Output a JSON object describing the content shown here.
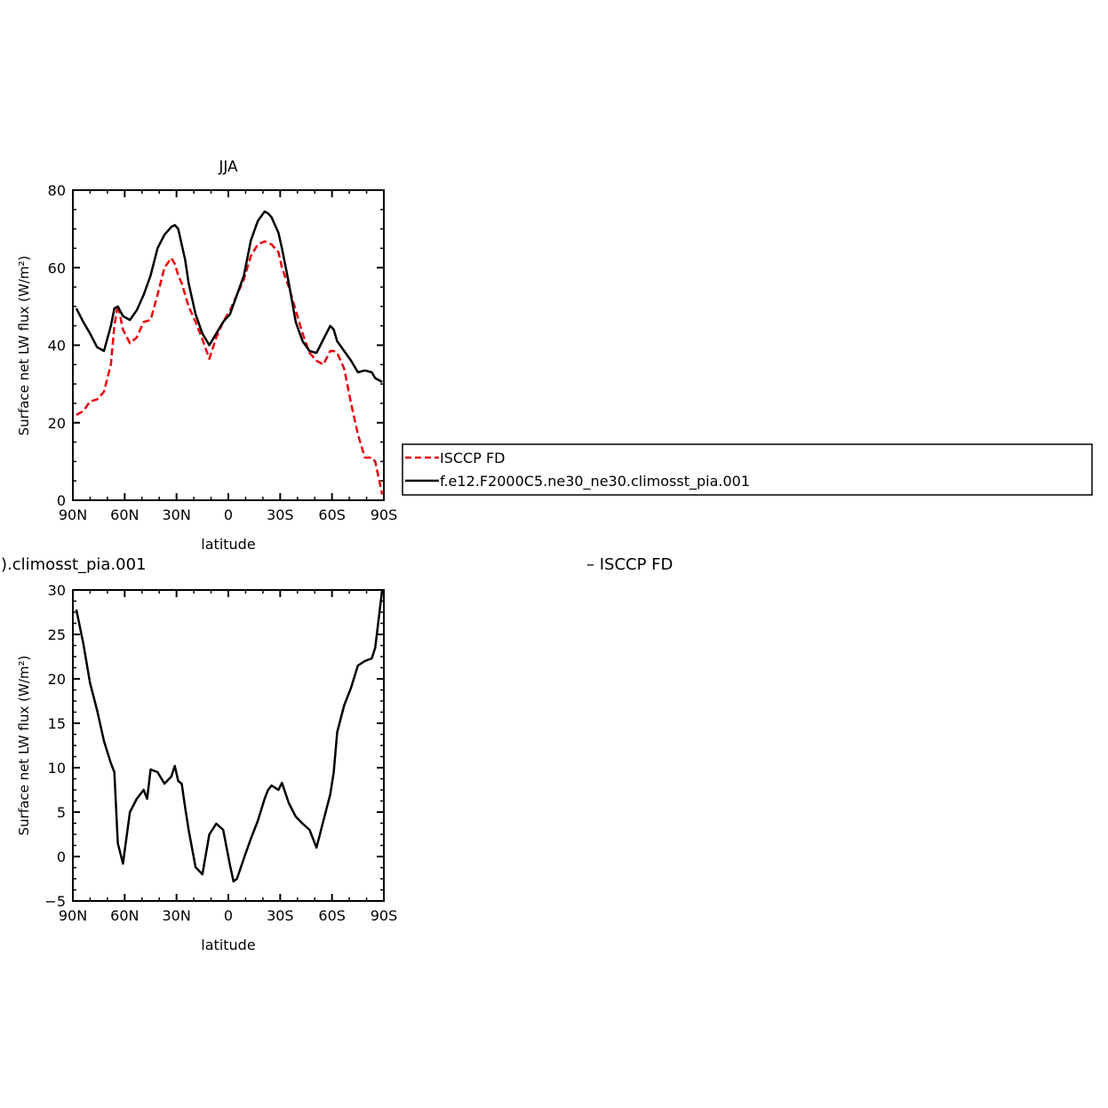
{
  "chart_data": [
    {
      "type": "line",
      "title": "JJA",
      "xlabel": "latitude",
      "ylabel": "Surface net LW flux (W/m²)",
      "xlim": [
        90,
        -90
      ],
      "ylim": [
        0,
        80
      ],
      "yticks": [
        0,
        20,
        40,
        60,
        80
      ],
      "xticks": [
        90,
        60,
        30,
        0,
        -30,
        -60,
        -90
      ],
      "xtick_labels": [
        "90N",
        "60N",
        "30N",
        "0",
        "30S",
        "60S",
        "90S"
      ],
      "legend_position": "right",
      "series": [
        {
          "name": "ISCCP FD",
          "color": "#e8000b",
          "dash": "dashed",
          "x": [
            88,
            84,
            80,
            76,
            72,
            68,
            66,
            64,
            61,
            57,
            53,
            49,
            45,
            41,
            37,
            33,
            31,
            29,
            27,
            25,
            23,
            19,
            15,
            11,
            7,
            3,
            -1,
            -5,
            -9,
            -13,
            -17,
            -21,
            -25,
            -29,
            -31,
            -35,
            -39,
            -43,
            -47,
            -51,
            -55,
            -59,
            -61,
            -63,
            -67,
            -71,
            -75,
            -79,
            -83,
            -85,
            -89
          ],
          "y": [
            22,
            23,
            25.5,
            26,
            28,
            35,
            45,
            50.5,
            44,
            40.5,
            42,
            46,
            46.5,
            53,
            60,
            62.5,
            61,
            58,
            56,
            53,
            50,
            46,
            41.5,
            36.5,
            42,
            46,
            49,
            53,
            57,
            63,
            66,
            66.8,
            66,
            64,
            60,
            55,
            49,
            43,
            38,
            36,
            35,
            38.5,
            38.5,
            38,
            34,
            25,
            17,
            11,
            11,
            10,
            1.5
          ]
        },
        {
          "name": "f.e12.F2000C5.ne30_ne30.climosst_pia.001",
          "color": "#000000",
          "dash": "solid",
          "x": [
            88,
            84,
            80,
            76,
            72,
            68,
            66,
            64,
            61,
            57,
            53,
            49,
            45,
            41,
            37,
            33,
            31,
            29,
            27,
            25,
            23,
            19,
            15,
            11,
            7,
            3,
            -1,
            -5,
            -9,
            -13,
            -17,
            -21,
            -23,
            -25,
            -29,
            -31,
            -35,
            -39,
            -43,
            -47,
            -51,
            -55,
            -59,
            -61,
            -63,
            -67,
            -71,
            -75,
            -79,
            -83,
            -85,
            -89
          ],
          "y": [
            49.5,
            46,
            43,
            39.5,
            38.5,
            45,
            49.5,
            50,
            47.5,
            46.5,
            49,
            53,
            58,
            65,
            68.5,
            70.5,
            71,
            70,
            66,
            62,
            56,
            48,
            43,
            40,
            43,
            46,
            48,
            53,
            58,
            67,
            72,
            74.5,
            74,
            73,
            69,
            65,
            56,
            46,
            41,
            38.5,
            38,
            41.5,
            45,
            44,
            41,
            38.5,
            36,
            33,
            33.5,
            33,
            31.5,
            30.5
          ]
        }
      ]
    },
    {
      "type": "line",
      "title": ").climosst_pia.001",
      "legend_label": "– ISCCP FD",
      "xlabel": "latitude",
      "ylabel": "Surface net LW flux (W/m²)",
      "xlim": [
        90,
        -90
      ],
      "ylim": [
        -5,
        30
      ],
      "yticks": [
        -5,
        0,
        5,
        10,
        15,
        20,
        25,
        30
      ],
      "xticks": [
        90,
        60,
        30,
        0,
        -30,
        -60,
        -90
      ],
      "xtick_labels": [
        "90N",
        "60N",
        "30N",
        "0",
        "30S",
        "60S",
        "90S"
      ],
      "series": [
        {
          "color": "#000000",
          "dash": "solid",
          "x": [
            88,
            84,
            80,
            76,
            72,
            68,
            66,
            64,
            61,
            57,
            53,
            49,
            47,
            45,
            41,
            37,
            33,
            31,
            29,
            27,
            25,
            23,
            19,
            15,
            11,
            7,
            3,
            -1,
            -3,
            -5,
            -9,
            -13,
            -17,
            -21,
            -23,
            -25,
            -29,
            -31,
            -35,
            -39,
            -43,
            -47,
            -51,
            -55,
            -59,
            -61,
            -63,
            -67,
            -71,
            -75,
            -79,
            -83,
            -85,
            -89
          ],
          "y": [
            27.8,
            24,
            19.5,
            16.5,
            13,
            10.5,
            9.5,
            1.5,
            -0.8,
            5,
            6.5,
            7.5,
            6.5,
            9.8,
            9.5,
            8.2,
            9,
            10.2,
            8.5,
            8.2,
            5.5,
            3,
            -1.2,
            -2,
            2.5,
            3.7,
            3,
            -1,
            -2.8,
            -2.5,
            -0.2,
            2,
            4,
            6.5,
            7.5,
            8,
            7.5,
            8.3,
            6,
            4.5,
            3.7,
            3,
            1,
            4,
            7,
            9.5,
            14,
            17,
            19,
            21.5,
            22,
            22.3,
            23.5,
            30
          ]
        }
      ]
    }
  ]
}
